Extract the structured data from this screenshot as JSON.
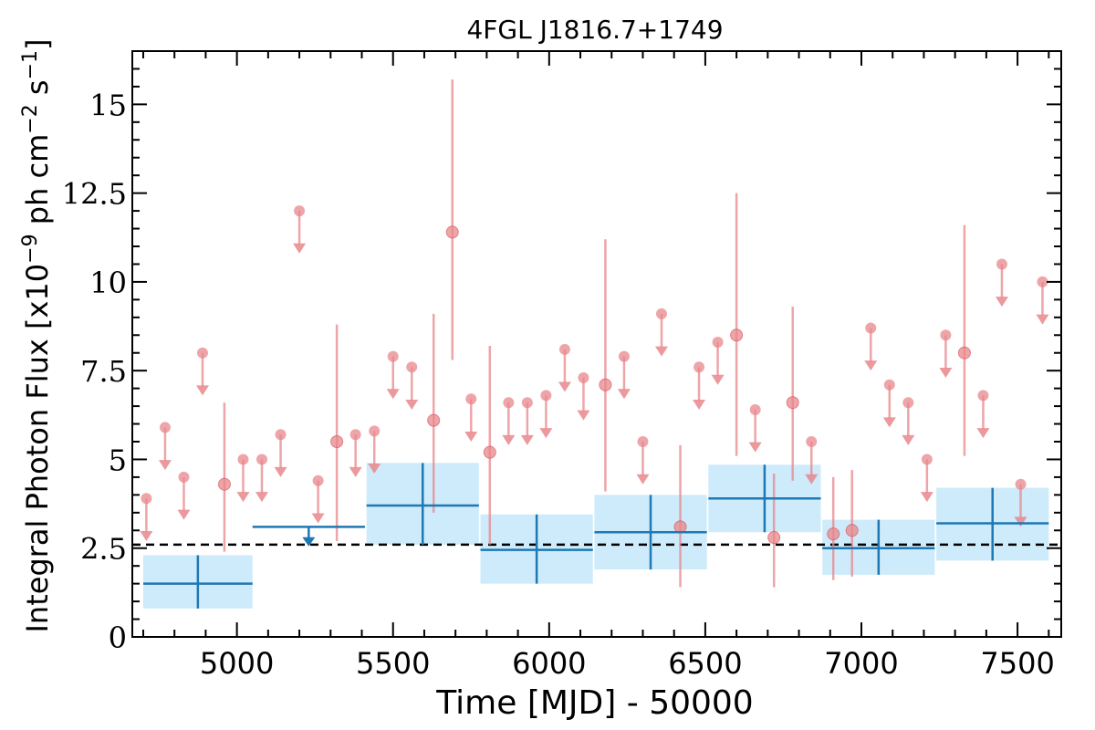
{
  "chart_data": {
    "type": "scatter",
    "title": "4FGL J1816.7+1749",
    "xlabel": "Time [MJD] - 50000",
    "ylabel": "Integral Photon Flux [x10",
    "ylabel_exp1": "−9",
    "ylabel_mid": " ph cm",
    "ylabel_exp2": "−2",
    "ylabel_mid2": " s",
    "ylabel_exp3": "−1",
    "ylabel_end": "]",
    "xlim": [
      4665,
      7640
    ],
    "ylim": [
      0,
      16.5
    ],
    "xticks": [
      5000,
      5500,
      6000,
      6500,
      7000,
      7500
    ],
    "xtick_labels": [
      "5000",
      "5500",
      "6000",
      "6500",
      "7000",
      "7500"
    ],
    "yticks": [
      0,
      2.5,
      5,
      7.5,
      10,
      12.5,
      15
    ],
    "ytick_labels": [
      "0",
      "2.5",
      "5",
      "7.5",
      "10",
      "12.5",
      "15"
    ],
    "average_flux": 2.6,
    "colors": {
      "monthly": "#e8878c",
      "yearly": "#1f77b4",
      "band": "#cdebfa",
      "average": "#000000"
    },
    "series": [
      {
        "kind": "monthly_detection",
        "points": [
          {
            "x": 4960,
            "y": 4.3,
            "ylo": 2.4,
            "yhi": 6.6
          },
          {
            "x": 5320,
            "y": 5.5,
            "ylo": 2.7,
            "yhi": 8.8
          },
          {
            "x": 5630,
            "y": 6.1,
            "ylo": 3.5,
            "yhi": 9.1
          },
          {
            "x": 5690,
            "y": 11.4,
            "ylo": 7.8,
            "yhi": 15.7
          },
          {
            "x": 5810,
            "y": 5.2,
            "ylo": 2.6,
            "yhi": 8.2
          },
          {
            "x": 6180,
            "y": 7.1,
            "ylo": 4.1,
            "yhi": 11.2
          },
          {
            "x": 6420,
            "y": 3.1,
            "ylo": 1.4,
            "yhi": 5.4
          },
          {
            "x": 6600,
            "y": 8.5,
            "ylo": 5.1,
            "yhi": 12.5
          },
          {
            "x": 6720,
            "y": 2.8,
            "ylo": 1.4,
            "yhi": 4.6
          },
          {
            "x": 6780,
            "y": 6.6,
            "ylo": 4.4,
            "yhi": 9.3
          },
          {
            "x": 6910,
            "y": 2.9,
            "ylo": 1.6,
            "yhi": 4.5
          },
          {
            "x": 6970,
            "y": 3.0,
            "ylo": 1.7,
            "yhi": 4.7
          },
          {
            "x": 7330,
            "y": 8.0,
            "ylo": 5.1,
            "yhi": 11.6
          }
        ]
      },
      {
        "kind": "monthly_upper_limit",
        "points": [
          {
            "x": 4710,
            "y": 3.9
          },
          {
            "x": 4770,
            "y": 5.9
          },
          {
            "x": 4830,
            "y": 4.5
          },
          {
            "x": 4890,
            "y": 8.0
          },
          {
            "x": 5020,
            "y": 5.0
          },
          {
            "x": 5080,
            "y": 5.0
          },
          {
            "x": 5140,
            "y": 5.7
          },
          {
            "x": 5200,
            "y": 12.0
          },
          {
            "x": 5260,
            "y": 4.4
          },
          {
            "x": 5380,
            "y": 5.7
          },
          {
            "x": 5440,
            "y": 5.8
          },
          {
            "x": 5500,
            "y": 7.9
          },
          {
            "x": 5560,
            "y": 7.6
          },
          {
            "x": 5750,
            "y": 6.7
          },
          {
            "x": 5870,
            "y": 6.6
          },
          {
            "x": 5930,
            "y": 6.6
          },
          {
            "x": 5990,
            "y": 6.8
          },
          {
            "x": 6050,
            "y": 8.1
          },
          {
            "x": 6110,
            "y": 7.3
          },
          {
            "x": 6240,
            "y": 7.9
          },
          {
            "x": 6300,
            "y": 5.5
          },
          {
            "x": 6360,
            "y": 9.1
          },
          {
            "x": 6480,
            "y": 7.6
          },
          {
            "x": 6540,
            "y": 8.3
          },
          {
            "x": 6660,
            "y": 6.4
          },
          {
            "x": 6840,
            "y": 5.5
          },
          {
            "x": 7030,
            "y": 8.7
          },
          {
            "x": 7090,
            "y": 7.1
          },
          {
            "x": 7150,
            "y": 6.6
          },
          {
            "x": 7210,
            "y": 5.0
          },
          {
            "x": 7270,
            "y": 8.5
          },
          {
            "x": 7390,
            "y": 6.8
          },
          {
            "x": 7450,
            "y": 10.5
          },
          {
            "x": 7510,
            "y": 4.3
          },
          {
            "x": 7580,
            "y": 10.0
          }
        ]
      },
      {
        "kind": "yearly_detection",
        "points": [
          {
            "x": 4875,
            "xlo": 4700,
            "xhi": 5050,
            "y": 1.5,
            "ylo": 0.8,
            "yhi": 2.3
          },
          {
            "x": 5595,
            "xlo": 5415,
            "xhi": 5775,
            "y": 3.7,
            "ylo": 2.6,
            "yhi": 4.9
          },
          {
            "x": 5960,
            "xlo": 5780,
            "xhi": 6140,
            "y": 2.45,
            "ylo": 1.5,
            "yhi": 3.45
          },
          {
            "x": 6325,
            "xlo": 6145,
            "xhi": 6505,
            "y": 2.95,
            "ylo": 1.9,
            "yhi": 4.0
          },
          {
            "x": 6690,
            "xlo": 6510,
            "xhi": 6870,
            "y": 3.9,
            "ylo": 2.95,
            "yhi": 4.85
          },
          {
            "x": 7055,
            "xlo": 6875,
            "xhi": 7235,
            "y": 2.5,
            "ylo": 1.75,
            "yhi": 3.3
          },
          {
            "x": 7420,
            "xlo": 7240,
            "xhi": 7600,
            "y": 3.2,
            "ylo": 2.15,
            "yhi": 4.2
          }
        ]
      },
      {
        "kind": "yearly_upper_limit",
        "points": [
          {
            "x": 5230,
            "xlo": 5050,
            "xhi": 5410,
            "y": 3.1
          }
        ]
      }
    ]
  }
}
